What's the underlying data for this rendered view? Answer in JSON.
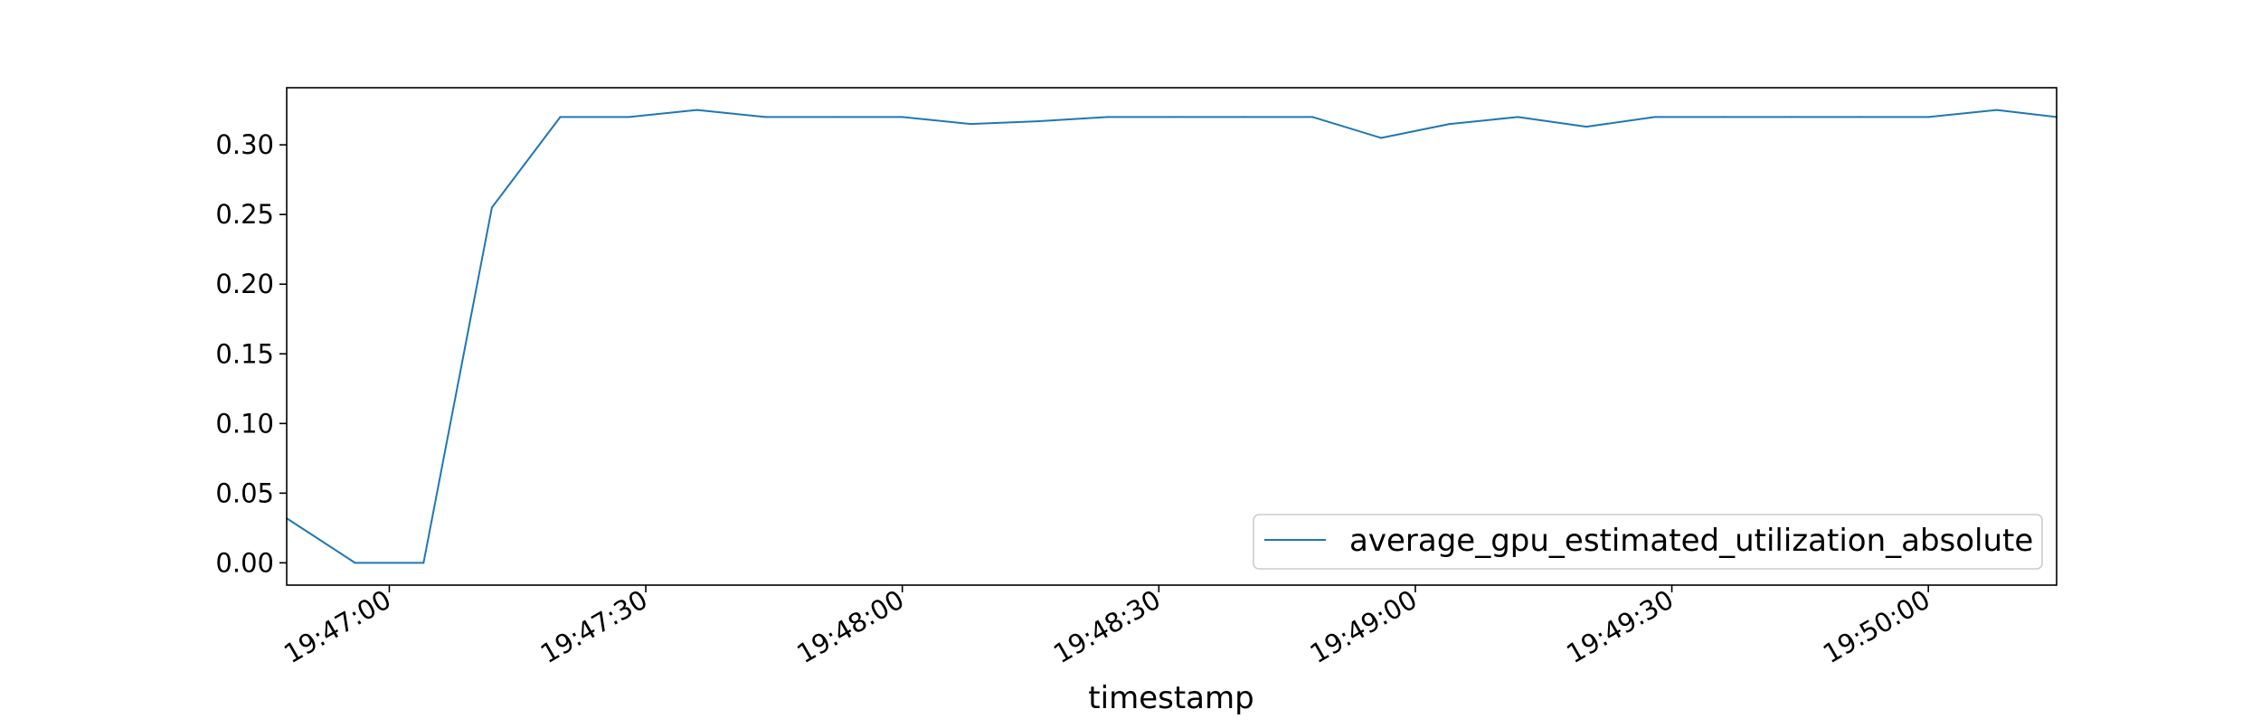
{
  "chart_data": {
    "type": "line",
    "title": "",
    "xlabel": "timestamp",
    "ylabel": "",
    "x_ticks": [
      "19:47:00",
      "19:47:30",
      "19:48:00",
      "19:48:30",
      "19:49:00",
      "19:49:30",
      "19:50:00"
    ],
    "y_ticks": [
      "0.00",
      "0.05",
      "0.10",
      "0.15",
      "0.20",
      "0.25",
      "0.30"
    ],
    "xlim": [
      "19:46:48",
      "19:50:15"
    ],
    "ylim": [
      -0.016,
      0.341
    ],
    "grid": false,
    "legend_position": "lower-right",
    "series": [
      {
        "name": "average_gpu_estimated_utilization_absolute",
        "color": "#1f77b4",
        "x": [
          "19:46:48",
          "19:46:56",
          "19:47:04",
          "19:47:12",
          "19:47:20",
          "19:47:28",
          "19:47:36",
          "19:47:44",
          "19:47:52",
          "19:48:00",
          "19:48:08",
          "19:48:16",
          "19:48:24",
          "19:48:32",
          "19:48:40",
          "19:48:48",
          "19:48:56",
          "19:49:04",
          "19:49:12",
          "19:49:20",
          "19:49:28",
          "19:49:36",
          "19:49:44",
          "19:49:52",
          "19:50:00",
          "19:50:08",
          "19:50:15"
        ],
        "y": [
          0.032,
          0.0,
          0.0,
          0.255,
          0.32,
          0.32,
          0.325,
          0.32,
          0.32,
          0.32,
          0.315,
          0.317,
          0.32,
          0.32,
          0.32,
          0.32,
          0.305,
          0.315,
          0.32,
          0.313,
          0.32,
          0.32,
          0.32,
          0.32,
          0.32,
          0.325,
          0.32
        ]
      }
    ]
  }
}
